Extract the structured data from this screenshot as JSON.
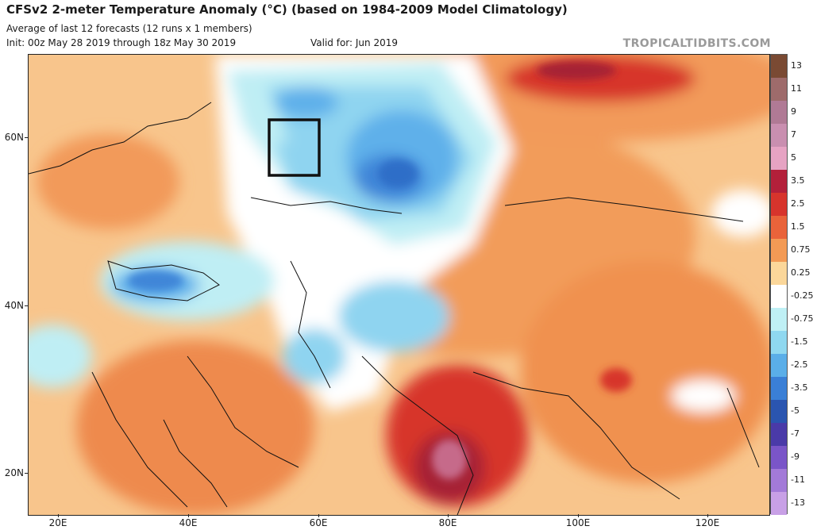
{
  "header": {
    "title": "CFSv2 2-meter Temperature Anomaly (°C) (based on 1984-2009 Model Climatology)",
    "subtitle": "Average of last 12 forecasts (12 runs x 1 members)",
    "init": "Init: 00z May 28 2019 through 18z May 30 2019",
    "valid": "Valid for: Jun 2019",
    "brand": "TROPICALTIDBITS.COM"
  },
  "map": {
    "lat_labels": [
      "60N",
      "40N",
      "20N"
    ],
    "lon_labels": [
      "20E",
      "40E",
      "60E",
      "80E",
      "100E",
      "120E"
    ],
    "highlight_box": "black rectangle over the Ural region"
  },
  "colorbar": {
    "labels": [
      "13",
      "11",
      "9",
      "7",
      "5",
      "3.5",
      "2.5",
      "1.5",
      "0.75",
      "0.25",
      "-0.25",
      "-0.75",
      "-1.5",
      "-2.5",
      "-3.5",
      "-5",
      "-7",
      "-9",
      "-11",
      "-13"
    ],
    "colors": [
      "#7a4a33",
      "#9e6b6b",
      "#b07a95",
      "#c98fb0",
      "#e6a3c3",
      "#b3203a",
      "#d7342c",
      "#e9633a",
      "#f39a55",
      "#fbd79a",
      "#ffffff",
      "#bff0f5",
      "#8fd8f0",
      "#5aaee8",
      "#3a7fd6",
      "#2a55b0",
      "#4a3aa8",
      "#7a55c8",
      "#a37ad8",
      "#c8a0e6"
    ]
  }
}
